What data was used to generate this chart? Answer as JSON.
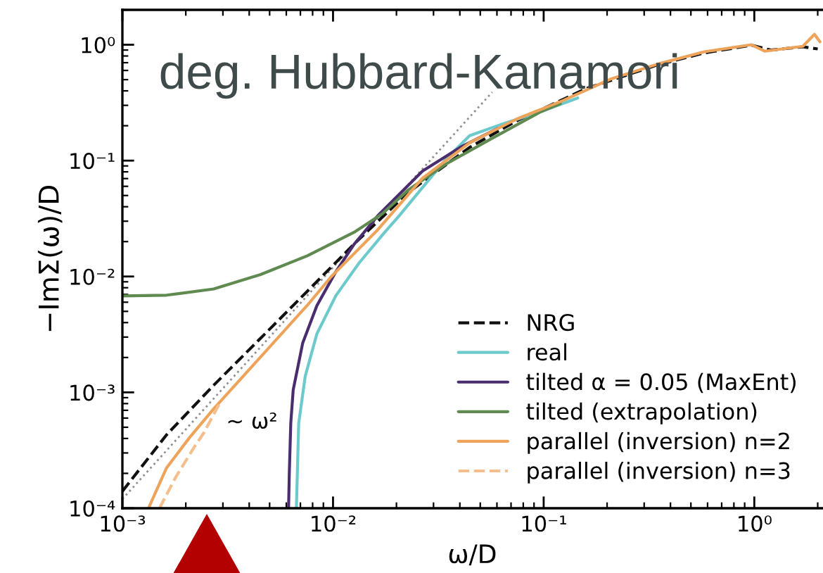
{
  "chart_data": {
    "type": "line",
    "title": "deg. Hubbard-Kanamori",
    "xlabel": "ω/D",
    "ylabel": "−ImΣ(ω)/D",
    "log": "xy",
    "xlim": [
      0.001,
      2.1
    ],
    "ylim": [
      0.0001,
      2
    ],
    "xticks": [
      {
        "value": 0.001,
        "label": "10⁻³"
      },
      {
        "value": 0.01,
        "label": "10⁻²"
      },
      {
        "value": 0.1,
        "label": "10⁻¹"
      },
      {
        "value": 1,
        "label": "10⁰"
      }
    ],
    "yticks": [
      {
        "value": 0.0001,
        "label": "10⁻⁴"
      },
      {
        "value": 0.001,
        "label": "10⁻³"
      },
      {
        "value": 0.01,
        "label": "10⁻²"
      },
      {
        "value": 0.1,
        "label": "10⁻¹"
      },
      {
        "value": 1,
        "label": "10⁰"
      }
    ],
    "legend": "bottom right",
    "annotations": [
      "~ ω²"
    ],
    "series": [
      {
        "color": "#909090",
        "line_style": "dotted",
        "x": [
          0.001,
          0.057
        ],
        "values": [
          0.00012,
          0.39
        ]
      },
      {
        "name": "NRG",
        "color": "#111111",
        "line_style": "dashed",
        "x": [
          0.001,
          0.00162,
          0.00271,
          0.00453,
          0.00755,
          0.0126,
          0.0228,
          0.0445,
          0.0743,
          0.16,
          0.347,
          0.58,
          0.97,
          1.2,
          1.7,
          2.0
        ],
        "values": [
          0.00014,
          0.00043,
          0.00115,
          0.00293,
          0.00746,
          0.0191,
          0.0533,
          0.13,
          0.22,
          0.42,
          0.67,
          0.85,
          0.99,
          0.9,
          0.96,
          0.92
        ]
      },
      {
        "name": "real",
        "color": "#6cc9cc",
        "line_style": "solid",
        "x": [
          0.0067,
          0.00687,
          0.00738,
          0.00838,
          0.0103,
          0.0133,
          0.0176,
          0.0206,
          0.0266,
          0.0344,
          0.0445,
          0.0637,
          0.1,
          0.145
        ],
        "values": [
          0.0001,
          0.00054,
          0.00138,
          0.0032,
          0.0068,
          0.0131,
          0.0241,
          0.0334,
          0.0586,
          0.103,
          0.164,
          0.207,
          0.27,
          0.347
        ]
      },
      {
        "name": "tilted α = 0.05 (MaxEnt)",
        "color": "#4a2d6e",
        "line_style": "solid",
        "x": [
          0.00615,
          0.0062,
          0.0063,
          0.00647,
          0.00718,
          0.00838,
          0.01028,
          0.0126,
          0.0163,
          0.0266,
          0.0401,
          0.0604
        ],
        "values": [
          0.0001,
          0.0002,
          0.00054,
          0.00105,
          0.00267,
          0.0056,
          0.0109,
          0.019,
          0.0334,
          0.0813,
          0.13,
          0.189
        ]
      },
      {
        "name": "tilted (extrapolation)",
        "color": "#5f8a50",
        "line_style": "solid",
        "x": [
          0.001,
          0.00162,
          0.00271,
          0.00453,
          0.00755,
          0.0126,
          0.0172,
          0.0228,
          0.0344,
          0.0574,
          0.096,
          0.12
        ],
        "values": [
          0.0068,
          0.0069,
          0.0078,
          0.0104,
          0.0151,
          0.0241,
          0.035,
          0.056,
          0.0935,
          0.157,
          0.262,
          0.31
        ]
      },
      {
        "name": "parallel (inversion) n=2",
        "color": "#eea35a",
        "line_style": "solid",
        "x": [
          0.00133,
          0.00162,
          0.00209,
          0.00271,
          0.00453,
          0.00755,
          0.00977,
          0.0163,
          0.0266,
          0.0445,
          0.0743,
          0.124,
          0.207,
          0.347,
          0.58,
          0.97,
          1.12,
          1.7,
          1.93,
          2.05
        ],
        "values": [
          0.0001,
          0.000223,
          0.00041,
          0.00072,
          0.00202,
          0.00564,
          0.0099,
          0.0253,
          0.0706,
          0.1425,
          0.228,
          0.331,
          0.504,
          0.68,
          0.87,
          1.0,
          0.88,
          0.97,
          1.23,
          1.06
        ]
      },
      {
        "name": "parallel (inversion) n=3",
        "color": "#f4bf8c",
        "line_style": "dashed",
        "x": [
          0.0015,
          0.00179,
          0.0022,
          0.00244,
          0.0029
        ],
        "values": [
          0.0001,
          0.000185,
          0.00034,
          0.00045,
          0.00081
        ]
      }
    ]
  }
}
